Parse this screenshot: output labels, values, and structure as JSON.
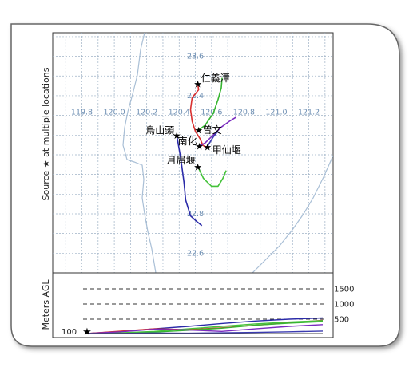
{
  "figure": {
    "ylabel_main": "Source ★ at multiple locations",
    "ylabel_bottom": "Meters AGL",
    "ground_label": "100"
  },
  "chart_data": [
    {
      "type": "line",
      "name": "trajectory-map",
      "xlim": [
        119.62,
        121.35
      ],
      "ylim": [
        22.5,
        23.72
      ],
      "grid": true,
      "x_ticks": [
        119.8,
        120.0,
        120.2,
        120.4,
        120.6,
        120.8,
        121.0,
        121.2
      ],
      "x_tick_labels": [
        "119.8",
        "120.0",
        "120.2",
        "120.4",
        "120.6",
        "120.8",
        "121.0",
        "121.2"
      ],
      "y_ticks": [
        22.6,
        22.8,
        23.4,
        23.6
      ],
      "y_tick_labels": [
        "22.6",
        "22.8",
        "23.4",
        "23.6"
      ],
      "colors": {
        "map_line": "#a9bfd6",
        "grid": "#9fb2c6",
        "tick_label": "#6e8fb3"
      },
      "sources": [
        {
          "label": "仁義潭",
          "lon": 120.515,
          "lat": 23.46
        },
        {
          "label": "曾文",
          "lon": 120.52,
          "lat": 23.225
        },
        {
          "label": "烏山頭",
          "lon": 120.385,
          "lat": 23.2
        },
        {
          "label": "南化",
          "lon": 120.525,
          "lat": 23.145
        },
        {
          "label": "甲仙堰",
          "lon": 120.575,
          "lat": 23.14
        },
        {
          "label": "月眉堰",
          "lon": 120.515,
          "lat": 23.04
        }
      ],
      "series": [
        {
          "color": "#d93030",
          "points": [
            [
              120.515,
              23.46
            ],
            [
              120.52,
              23.43
            ],
            [
              120.48,
              23.39
            ],
            [
              120.47,
              23.33
            ],
            [
              120.48,
              23.27
            ],
            [
              120.5,
              23.22
            ],
            [
              120.53,
              23.18
            ],
            [
              120.545,
              23.15
            ],
            [
              120.56,
              23.14
            ],
            [
              120.58,
              23.14
            ]
          ]
        },
        {
          "color": "#35b530",
          "points": [
            [
              120.52,
              23.225
            ],
            [
              120.56,
              23.25
            ],
            [
              120.61,
              23.31
            ],
            [
              120.64,
              23.38
            ],
            [
              120.66,
              23.44
            ],
            [
              120.665,
              23.49
            ]
          ]
        },
        {
          "color": "#2a2aa8",
          "points": [
            [
              120.385,
              23.2
            ],
            [
              120.41,
              23.08
            ],
            [
              120.43,
              22.96
            ],
            [
              120.44,
              22.87
            ],
            [
              120.47,
              22.79
            ],
            [
              120.51,
              22.76
            ],
            [
              120.54,
              22.74
            ]
          ]
        },
        {
          "color": "#7a2bbf",
          "points": [
            [
              120.525,
              23.145
            ],
            [
              120.56,
              23.16
            ],
            [
              120.61,
              23.2
            ],
            [
              120.66,
              23.24
            ],
            [
              120.71,
              23.27
            ],
            [
              120.75,
              23.29
            ]
          ]
        },
        {
          "color": "#3b3bb0",
          "points": [
            [
              120.575,
              23.14
            ],
            [
              120.58,
              23.15
            ],
            [
              120.61,
              23.19
            ],
            [
              120.64,
              23.22
            ]
          ]
        },
        {
          "color": "#44c23a",
          "points": [
            [
              120.515,
              23.04
            ],
            [
              120.55,
              22.98
            ],
            [
              120.6,
              22.94
            ],
            [
              120.64,
              22.94
            ],
            [
              120.67,
              22.98
            ],
            [
              120.69,
              23.02
            ]
          ]
        }
      ]
    },
    {
      "type": "line",
      "name": "height-profile",
      "ylabel": "Meters AGL",
      "ylim": [
        0,
        1800
      ],
      "reference_levels": [
        {
          "value": 1500,
          "label": "1500"
        },
        {
          "value": 1000,
          "label": "1000"
        },
        {
          "value": 500,
          "label": "500"
        }
      ],
      "start_height": 100,
      "series": [
        {
          "color": "#2a2aa8",
          "values": [
            100,
            160,
            230,
            300,
            380,
            450,
            500,
            540
          ]
        },
        {
          "color": "#d93030",
          "values": [
            100,
            170,
            230,
            210,
            260,
            330,
            400,
            470
          ]
        },
        {
          "color": "#35b530",
          "values": [
            100,
            110,
            140,
            190,
            250,
            330,
            390,
            430
          ]
        },
        {
          "color": "#44c23a",
          "values": [
            100,
            120,
            160,
            230,
            300,
            370,
            420,
            460
          ]
        },
        {
          "color": "#7a2bbf",
          "values": [
            100,
            150,
            220,
            200,
            160,
            230,
            300,
            350
          ]
        },
        {
          "color": "#3b3bb0",
          "values": [
            100,
            105,
            115,
            110,
            120,
            130,
            150,
            170
          ]
        }
      ]
    }
  ]
}
